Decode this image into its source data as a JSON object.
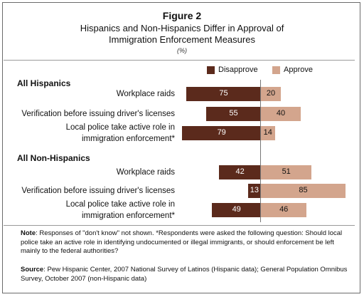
{
  "figure_label": "Figure 2",
  "title_line1": "Hispanics and Non-Hispanics Differ in Approval of",
  "title_line2": "Immigration Enforcement Measures",
  "units": "(%)",
  "legend": {
    "disapprove": "Disapprove",
    "approve": "Approve"
  },
  "colors": {
    "disapprove": "#5b2a1c",
    "approve": "#d3a58d"
  },
  "note": {
    "label": "Note",
    "text": ": Responses of \"don't know\" not shown.  *Respondents were asked the following question: Should local police take an active role in identifying undocumented or illegal immigrants, or should enforcement be left mainly to the federal authorities?"
  },
  "source": {
    "label": "Source",
    "text": ": Pew Hispanic Center, 2007 National Survey of Latinos (Hispanic data);  General Population Omnibus Survey, October 2007 (non-Hispanic data)"
  },
  "chart_data": {
    "type": "bar",
    "orientation": "horizontal-diverging",
    "series": [
      {
        "name": "Disapprove",
        "side": "left"
      },
      {
        "name": "Approve",
        "side": "right"
      }
    ],
    "groups": [
      {
        "name": "All Hispanics",
        "rows": [
          {
            "label": "Workplace raids",
            "disapprove": 75,
            "approve": 20
          },
          {
            "label": "Verification before issuing driver's licenses",
            "disapprove": 55,
            "approve": 40
          },
          {
            "label_lines": [
              "Local police take active role in",
              "immigration enforcement*"
            ],
            "disapprove": 79,
            "approve": 14
          }
        ]
      },
      {
        "name": "All Non-Hispanics",
        "rows": [
          {
            "label": "Workplace raids",
            "disapprove": 42,
            "approve": 51
          },
          {
            "label": "Verification before issuing driver's licenses",
            "disapprove": 13,
            "approve": 85
          },
          {
            "label_lines": [
              "Local police take active role in",
              "immigration enforcement*"
            ],
            "disapprove": 49,
            "approve": 46
          }
        ]
      }
    ]
  }
}
